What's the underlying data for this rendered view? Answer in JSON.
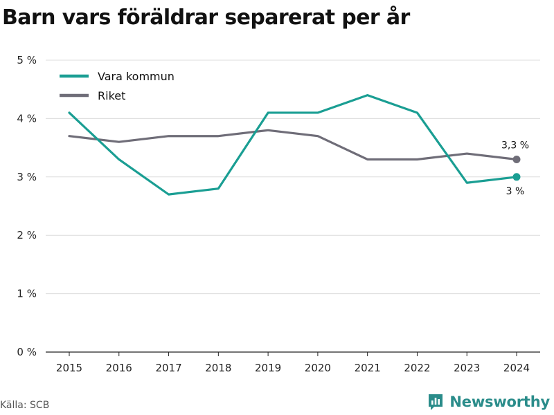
{
  "chart_data": {
    "type": "line",
    "title": "Barn vars föräldrar separerat per år",
    "xlabel": "",
    "ylabel": "",
    "categories": [
      "2015",
      "2016",
      "2017",
      "2018",
      "2019",
      "2020",
      "2021",
      "2022",
      "2023",
      "2024"
    ],
    "ylim": [
      0,
      5
    ],
    "y_ticks": [
      0,
      1,
      2,
      3,
      4,
      5
    ],
    "y_tick_labels": [
      "0 %",
      "1 %",
      "2 %",
      "3 %",
      "4 %",
      "5 %"
    ],
    "grid": true,
    "legend": "top-left",
    "series": [
      {
        "name": "Vara kommun",
        "color": "#1a9e93",
        "values": [
          4.1,
          3.3,
          2.7,
          2.8,
          4.1,
          4.1,
          4.4,
          4.1,
          2.9,
          3.0
        ],
        "end_label": "3 %"
      },
      {
        "name": "Riket",
        "color": "#6f6d78",
        "values": [
          3.7,
          3.6,
          3.7,
          3.7,
          3.8,
          3.7,
          3.3,
          3.3,
          3.4,
          3.3
        ],
        "end_label": "3,3 %"
      }
    ]
  },
  "footer": {
    "source": "Källa: SCB",
    "brand": "Newsworthy",
    "brand_icon": "bar-chart-logo-icon",
    "brand_color": "#2a8c8a"
  }
}
